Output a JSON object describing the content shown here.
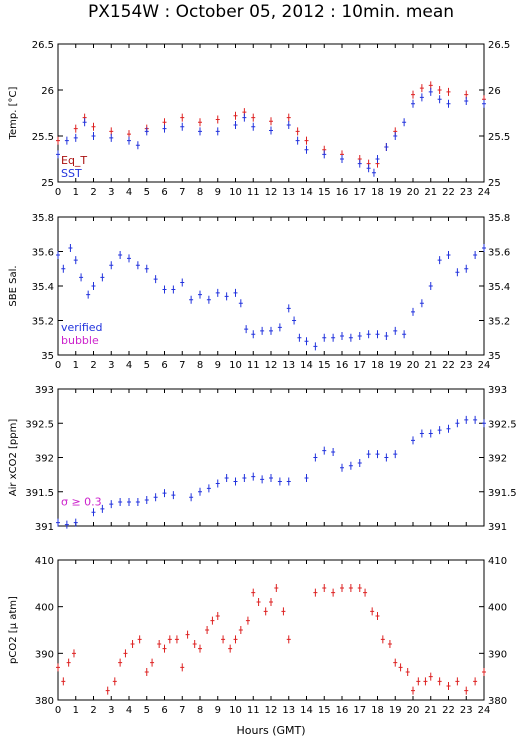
{
  "title": "PX154W : October 05, 2012 : 10min. mean",
  "xlabel": "Hours (GMT)",
  "colors": {
    "red": "#dd2222",
    "blue": "#2233dd",
    "magenta": "#cc22cc",
    "darkred": "#aa1111",
    "frame": "#000000"
  },
  "chart_data": [
    {
      "type": "scatter",
      "ylabel": "Temp. [°C]",
      "ylim": [
        25,
        26.5
      ],
      "yticks": [
        "25",
        "25.5",
        "26",
        "26.5"
      ],
      "xlim": [
        0,
        24
      ],
      "xticks": [
        "0",
        "1",
        "2",
        "3",
        "4",
        "5",
        "6",
        "7",
        "8",
        "9",
        "10",
        "11",
        "12",
        "13",
        "14",
        "15",
        "16",
        "17",
        "18",
        "19",
        "20",
        "21",
        "22",
        "23",
        "24"
      ],
      "legend": [
        "Eq_T",
        "SST"
      ],
      "series": [
        {
          "name": "Eq_T",
          "color": "#dd2222",
          "x": [
            0,
            1,
            1.5,
            2,
            3,
            4,
            5,
            6,
            7,
            8,
            9,
            10,
            10.5,
            11,
            12,
            13,
            13.5,
            14,
            15,
            16,
            17,
            17.5,
            18,
            18.5,
            19,
            20,
            20.5,
            21,
            21.5,
            22,
            23,
            24
          ],
          "y": [
            25.45,
            25.58,
            25.7,
            25.6,
            25.55,
            25.52,
            25.58,
            25.65,
            25.7,
            25.65,
            25.68,
            25.72,
            25.76,
            25.7,
            25.66,
            25.7,
            25.55,
            25.45,
            25.35,
            25.3,
            25.25,
            25.2,
            25.2,
            25.38,
            25.55,
            25.95,
            26.02,
            26.05,
            26.0,
            25.98,
            25.95,
            25.9
          ]
        },
        {
          "name": "SST",
          "color": "#2233dd",
          "x": [
            0,
            0.5,
            1,
            1.5,
            2,
            3,
            4,
            4.5,
            5,
            6,
            7,
            8,
            9,
            10,
            10.5,
            11,
            12,
            13,
            13.5,
            14,
            15,
            16,
            17,
            17.5,
            17.8,
            18,
            18.5,
            19,
            19.5,
            20,
            20.5,
            21,
            21.5,
            22,
            23,
            24
          ],
          "y": [
            25.3,
            25.45,
            25.48,
            25.65,
            25.5,
            25.48,
            25.45,
            25.4,
            25.55,
            25.58,
            25.6,
            25.55,
            25.55,
            25.62,
            25.7,
            25.6,
            25.56,
            25.62,
            25.45,
            25.35,
            25.3,
            25.25,
            25.2,
            25.15,
            25.1,
            25.25,
            25.38,
            25.5,
            25.65,
            25.85,
            25.92,
            25.98,
            25.9,
            25.85,
            25.88,
            25.85
          ]
        }
      ]
    },
    {
      "type": "scatter",
      "ylabel": "SBE Sal.",
      "ylim": [
        35,
        35.8
      ],
      "yticks": [
        "35",
        "35.2",
        "35.4",
        "35.6",
        "35.8"
      ],
      "xlim": [
        0,
        24
      ],
      "legend": [
        "verified",
        "bubble"
      ],
      "series": [
        {
          "name": "verified",
          "color": "#2233dd",
          "x": [
            0,
            0.3,
            0.7,
            1,
            1.3,
            1.7,
            2,
            2.5,
            3,
            3.5,
            4,
            4.5,
            5,
            5.5,
            6,
            6.5,
            7,
            7.5,
            8,
            8.5,
            9,
            9.5,
            10,
            10.3,
            10.6,
            11,
            11.5,
            12,
            12.5,
            13,
            13.3,
            13.6,
            14,
            14.5,
            15,
            15.5,
            16,
            16.5,
            17,
            17.5,
            18,
            18.5,
            19,
            19.5,
            20,
            20.5,
            21,
            21.5,
            22,
            22.5,
            23,
            23.5,
            24
          ],
          "y": [
            35.58,
            35.5,
            35.62,
            35.55,
            35.45,
            35.35,
            35.4,
            35.45,
            35.52,
            35.58,
            35.56,
            35.52,
            35.5,
            35.44,
            35.38,
            35.38,
            35.42,
            35.32,
            35.35,
            35.32,
            35.36,
            35.34,
            35.36,
            35.3,
            35.15,
            35.12,
            35.14,
            35.14,
            35.16,
            35.27,
            35.2,
            35.1,
            35.08,
            35.05,
            35.1,
            35.1,
            35.11,
            35.1,
            35.11,
            35.12,
            35.12,
            35.11,
            35.14,
            35.12,
            35.25,
            35.3,
            35.4,
            35.55,
            35.58,
            35.48,
            35.5,
            35.58,
            35.62
          ]
        }
      ]
    },
    {
      "type": "scatter",
      "ylabel": "Air xCO2 [ppm]",
      "ylim": [
        391,
        393
      ],
      "yticks": [
        "391",
        "391.5",
        "392",
        "392.5",
        "393"
      ],
      "xlim": [
        0,
        24
      ],
      "annotation": "σ ≥ 0.3",
      "series": [
        {
          "name": "",
          "color": "#2233dd",
          "x": [
            0,
            0.5,
            1,
            2,
            2.5,
            3,
            3.5,
            4,
            4.5,
            5,
            5.5,
            6,
            6.5,
            7.5,
            8,
            8.5,
            9,
            9.5,
            10,
            10.5,
            11,
            11.5,
            12,
            12.5,
            13,
            14,
            14.5,
            15,
            15.5,
            16,
            16.5,
            17,
            17.5,
            18,
            18.5,
            19,
            20,
            20.5,
            21,
            21.5,
            22,
            22.5,
            23,
            23.5,
            24
          ],
          "y": [
            391.05,
            391.02,
            391.05,
            391.2,
            391.25,
            391.32,
            391.35,
            391.35,
            391.35,
            391.38,
            391.42,
            391.48,
            391.45,
            391.42,
            391.5,
            391.55,
            391.62,
            391.7,
            391.65,
            391.7,
            391.72,
            391.68,
            391.7,
            391.65,
            391.65,
            391.7,
            392.0,
            392.1,
            392.08,
            391.85,
            391.88,
            391.92,
            392.05,
            392.05,
            392.0,
            392.05,
            392.25,
            392.35,
            392.35,
            392.4,
            392.42,
            392.5,
            392.55,
            392.55,
            392.5
          ]
        }
      ]
    },
    {
      "type": "scatter",
      "ylabel": "pCO2 [μ atm]",
      "ylim": [
        380,
        410
      ],
      "yticks": [
        "380",
        "390",
        "400",
        "410"
      ],
      "xlim": [
        0,
        24
      ],
      "series": [
        {
          "name": "",
          "color": "#dd2222",
          "x": [
            0,
            0.3,
            0.6,
            0.9,
            2.8,
            3.2,
            3.5,
            3.8,
            4.2,
            4.6,
            5,
            5.3,
            5.7,
            6,
            6.3,
            6.7,
            7,
            7.3,
            7.7,
            8,
            8.4,
            8.7,
            9,
            9.3,
            9.7,
            10,
            10.3,
            10.7,
            11,
            11.3,
            11.7,
            12,
            12.3,
            12.7,
            13,
            14.5,
            15,
            15.5,
            16,
            16.5,
            17,
            17.3,
            17.7,
            18,
            18.3,
            18.7,
            19,
            19.3,
            19.7,
            20,
            20.3,
            20.7,
            21,
            21.5,
            22,
            22.5,
            23,
            23.5,
            24
          ],
          "y": [
            387,
            384,
            388,
            390,
            382,
            384,
            388,
            390,
            392,
            393,
            386,
            388,
            392,
            391,
            393,
            393,
            387,
            394,
            392,
            391,
            395,
            397,
            398,
            393,
            391,
            393,
            395,
            397,
            403,
            401,
            399,
            401,
            404,
            399,
            393,
            403,
            404,
            403,
            404,
            404,
            404,
            403,
            399,
            398,
            393,
            392,
            388,
            387,
            386,
            382,
            384,
            384,
            385,
            384,
            383,
            384,
            382,
            384,
            386
          ]
        }
      ]
    }
  ]
}
